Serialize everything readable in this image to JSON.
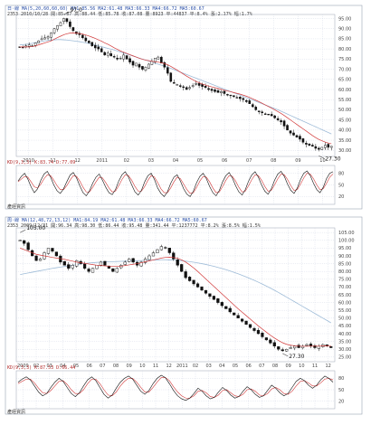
{
  "colors": {
    "candle_up": "#ffffff",
    "candle_down": "#111111",
    "ma_short": "#d23a3a",
    "ma_mid": "#2f8a4a",
    "ma_long": "#9fbcd8",
    "grid": "#cfd6e3",
    "frame": "#9aa3b2",
    "k_line": "#111111",
    "d_line": "#d23a3a"
  },
  "chart_data": [
    {
      "type": "candlestick",
      "header_line1": "日·線 MA(5,20,60,60,60)  MA1:85.56  MA2:61.48  MA3:66.33  MA4:66.72  MA5:60.67",
      "header_line2": "2353  2010/10/28  開:85.87  高:88.44  低:85.78  收:87.08  量:8923  平:44837  平:8.4%  漲:2.17%  幅:1.7%",
      "x_tick_labels": [
        "2010",
        "11",
        "12",
        "2011",
        "02",
        "03",
        "04",
        "05",
        "06",
        "07",
        "08",
        "09",
        "10"
      ],
      "y_tick_labels": [
        "95.00",
        "90.00",
        "85.00",
        "80.00",
        "75.00",
        "70.00",
        "65.00",
        "60.00",
        "55.00",
        "50.00",
        "45.00",
        "40.00",
        "35.00",
        "30.00"
      ],
      "y_range": [
        27,
        97
      ],
      "close": [
        81,
        80.5,
        81.5,
        82,
        81.5,
        83,
        84,
        85,
        85.5,
        86,
        88,
        90,
        91.5,
        93,
        95,
        93.5,
        91,
        89,
        87.5,
        87,
        85.5,
        84,
        83,
        81.5,
        80.5,
        80,
        78.5,
        77,
        78,
        76.5,
        76,
        75,
        75.5,
        77,
        75,
        73.5,
        72,
        73,
        71,
        70,
        71,
        72.5,
        74,
        75.5,
        76,
        73,
        71,
        68,
        64,
        63,
        62.5,
        61.5,
        61,
        60,
        61,
        62,
        63,
        62,
        61.5,
        61,
        60,
        59.5,
        59,
        58.5,
        59,
        58,
        57.5,
        57,
        56.5,
        56,
        55.5,
        55,
        54,
        53,
        51.5,
        50,
        49,
        48.5,
        48,
        47.5,
        47,
        46,
        45,
        44,
        42,
        40,
        38.5,
        37.5,
        36.5,
        35.5,
        34,
        33,
        32.5,
        32,
        31,
        30.5,
        31.5,
        32.5,
        31.5,
        32
      ],
      "ma20": [
        81,
        81,
        81,
        81,
        81.2,
        81.5,
        82,
        82.5,
        83,
        83.5,
        84,
        84.8,
        85.6,
        86.3,
        87,
        87.5,
        87.8,
        87.9,
        87.8,
        87.6,
        87.3,
        86.9,
        86.4,
        85.8,
        85.2,
        84.5,
        83.8,
        83,
        82.3,
        81.5,
        80.6,
        79.8,
        79,
        78.4,
        77.8,
        77.2,
        76.6,
        76,
        75.4,
        74.9,
        74.5,
        74.2,
        73.9,
        73.7,
        73.5,
        73.2,
        72.8,
        72.2,
        71.4,
        70.5,
        69.6,
        68.6,
        67.6,
        66.6,
        65.7,
        64.8,
        64,
        63.3,
        62.7,
        62.2,
        61.7,
        61.3,
        60.9,
        60.5,
        60.1,
        59.7,
        59.3,
        58.9,
        58.5,
        58.1,
        57.7,
        57.2,
        56.7,
        56.1,
        55.4,
        54.7,
        54,
        53.2,
        52.4,
        51.6,
        50.8,
        50,
        49.1,
        48.2,
        47.2,
        46.1,
        45,
        43.9,
        42.8,
        41.7,
        40.6,
        39.5,
        38.4,
        37.3,
        36.3,
        35.4,
        34.7,
        34.1,
        33.6,
        33.2
      ],
      "ma60": [
        82,
        82.1,
        82.3,
        82.5,
        82.8,
        83.1,
        83.4,
        83.7,
        84,
        84.2,
        84.4,
        84.5,
        84.6,
        84.6,
        84.5,
        84.4,
        84.2,
        84,
        83.8,
        83.6,
        83.3,
        83,
        82.7,
        82.3,
        81.9,
        81.5,
        81.1,
        80.7,
        80.3,
        79.9,
        79.5,
        79,
        78.5,
        78,
        77.5,
        77,
        76.5,
        76,
        75.5,
        75,
        74.5,
        74,
        73.5,
        73,
        72.5,
        72,
        71.5,
        71,
        70.4,
        69.8,
        69.2,
        68.6,
        68,
        67.4,
        66.8,
        66.2,
        65.6,
        65,
        64.4,
        63.8,
        63.2,
        62.6,
        62,
        61.4,
        60.8,
        60.2,
        59.6,
        59,
        58.4,
        57.8,
        57.2,
        56.6,
        56,
        55.4,
        54.8,
        54.2,
        53.6,
        53,
        52.4,
        51.8,
        51.2,
        50.6,
        50,
        49.3,
        48.6,
        47.9,
        47.2,
        46.5,
        45.8,
        45.1,
        44.4,
        43.7,
        43,
        42.3,
        41.6,
        40.9,
        40.2,
        39.5,
        38.8,
        38.1
      ],
      "annotations": [
        {
          "text": "97.0",
          "x_index": 14,
          "value": 97
        },
        {
          "text": "27.30",
          "x_index": 95,
          "value": 27.3
        }
      ],
      "oscillator": {
        "label": "KD(9,3,3)  K:83.74  D:77.09",
        "y_tick_labels": [
          "80",
          "50",
          "20"
        ],
        "y_range": [
          0,
          100
        ],
        "k": [
          60,
          72,
          80,
          65,
          45,
          30,
          40,
          62,
          78,
          85,
          70,
          50,
          35,
          28,
          40,
          58,
          75,
          82,
          68,
          48,
          30,
          22,
          35,
          55,
          70,
          78,
          62,
          44,
          30,
          25,
          38,
          60,
          76,
          84,
          70,
          50,
          32,
          24,
          36,
          58,
          74,
          80,
          64,
          42,
          28,
          20,
          32,
          54,
          70,
          76,
          60,
          40,
          26,
          20,
          34,
          56,
          72,
          80,
          66,
          46,
          30,
          22,
          36,
          58,
          74,
          82,
          68,
          48,
          32,
          24,
          38,
          60,
          76,
          84,
          70,
          50,
          34,
          26,
          40,
          62,
          78,
          85,
          72,
          52,
          36,
          28,
          42,
          64,
          80,
          86,
          74,
          54,
          38,
          30,
          44,
          66,
          80,
          84
        ],
        "d": [
          58,
          65,
          72,
          70,
          58,
          45,
          42,
          52,
          66,
          76,
          74,
          62,
          48,
          38,
          38,
          48,
          62,
          74,
          72,
          60,
          44,
          32,
          32,
          44,
          58,
          70,
          68,
          56,
          42,
          32,
          34,
          48,
          64,
          76,
          74,
          62,
          46,
          34,
          34,
          46,
          62,
          74,
          70,
          56,
          40,
          30,
          30,
          42,
          58,
          70,
          66,
          52,
          38,
          28,
          30,
          44,
          60,
          72,
          70,
          58,
          42,
          30,
          32,
          46,
          62,
          74,
          72,
          60,
          44,
          32,
          34,
          48,
          64,
          76,
          74,
          62,
          46,
          34,
          36,
          50,
          66,
          78,
          76,
          64,
          48,
          36,
          38,
          52,
          68,
          80,
          78,
          66,
          50,
          38,
          40,
          54,
          70,
          78
        ]
      },
      "footer": "產經資訊"
    },
    {
      "type": "candlestick",
      "header_line1": "周·線 MA(12,48,72,13,12)  MA1:84.19  MA2:61.48  MA3:66.33  MA4:66.72  MA5:60.67",
      "header_line2": "2353  2009/12/31  開:96.34  高:98.30  低:86.44  收:95.48  量:341.44  平:1237772  平:8.2%  漲:8.5%  幅:1.5%",
      "x_tick_labels": [
        "2009",
        "02",
        "03",
        "04",
        "05",
        "06",
        "07",
        "08",
        "09",
        "10",
        "11",
        "12",
        "2011",
        "02",
        "03",
        "04",
        "05",
        "06",
        "07",
        "08",
        "09",
        "10",
        "11",
        "12"
      ],
      "y_tick_labels": [
        "105.00",
        "100.00",
        "95.00",
        "90.00",
        "85.00",
        "80.00",
        "75.00",
        "70.00",
        "65.00",
        "60.00",
        "55.00",
        "50.00",
        "45.00",
        "40.00",
        "35.00",
        "30.00",
        "25.00"
      ],
      "y_range": [
        22,
        108
      ],
      "close": [
        100,
        98,
        94,
        90,
        87,
        88,
        92,
        95,
        93,
        90,
        86,
        84,
        82,
        84,
        87,
        85,
        82,
        80,
        82,
        84,
        86,
        84,
        82,
        80,
        82,
        84,
        86,
        88,
        86,
        84,
        86,
        88,
        90,
        92,
        94,
        96,
        95,
        92,
        88,
        84,
        80,
        76,
        74,
        72,
        70,
        68,
        66,
        64,
        62,
        60,
        58,
        56,
        54,
        52,
        50,
        48,
        46,
        44,
        42,
        40,
        38,
        36,
        34,
        32,
        30,
        29,
        30,
        31,
        32,
        31,
        32,
        33,
        32,
        31,
        32,
        33,
        32,
        31
      ],
      "ma_mid": [
        78,
        78.5,
        79,
        79.5,
        80,
        80.5,
        81,
        81.5,
        82,
        82.4,
        82.8,
        83.2,
        83.6,
        84,
        84.4,
        84.8,
        85.1,
        85.4,
        85.6,
        85.8,
        86,
        86.1,
        86.2,
        86.3,
        86.4,
        86.5,
        86.6,
        86.7,
        86.8,
        86.9,
        87,
        87.1,
        87.2,
        87.3,
        87.4,
        87.5,
        87.5,
        87.4,
        87.3,
        87.1,
        86.9,
        86.6,
        86.3,
        85.9,
        85.5,
        85,
        84.5,
        83.9,
        83.3,
        82.6,
        81.9,
        81.1,
        80.3,
        79.4,
        78.5,
        77.5,
        76.5,
        75.4,
        74.3,
        73.1,
        71.9,
        70.6,
        69.3,
        67.9,
        66.5,
        65,
        63.5,
        62,
        60.5,
        59,
        57.5,
        56,
        54.5,
        53,
        51.5,
        50,
        48.5,
        47
      ],
      "ma_short": [
        95,
        94,
        93,
        92,
        91,
        90.5,
        90,
        89.5,
        89,
        88.6,
        88.2,
        87.8,
        87.2,
        86.6,
        86,
        85.6,
        85.2,
        84.8,
        84.4,
        84,
        83.8,
        83.6,
        83.4,
        83.2,
        83.2,
        83.4,
        83.8,
        84.2,
        84.6,
        85,
        85.6,
        86.2,
        86.8,
        87.4,
        88,
        88.6,
        89,
        89.2,
        89,
        88.4,
        87.4,
        86,
        84.2,
        82.2,
        80,
        77.6,
        75.2,
        72.8,
        70.4,
        68,
        65.6,
        63.2,
        60.8,
        58.4,
        56,
        53.8,
        51.6,
        49.4,
        47.2,
        45,
        43,
        41,
        39,
        37.2,
        35.6,
        34.2,
        33.2,
        32.6,
        32.2,
        32,
        31.9,
        31.9,
        32,
        32,
        32,
        32.1,
        32.1,
        32
      ],
      "annotations": [
        {
          "text": "105.00",
          "x_index": 0,
          "value": 105
        },
        {
          "text": "27.30",
          "x_index": 65,
          "value": 27.3
        }
      ],
      "oscillator": {
        "label": "KD(9,3,3)  K:87.53  D:66.44",
        "y_tick_labels": [
          "80",
          "50",
          "20"
        ],
        "y_range": [
          0,
          100
        ],
        "k": [
          70,
          78,
          84,
          76,
          60,
          44,
          34,
          40,
          56,
          70,
          80,
          72,
          56,
          40,
          32,
          42,
          60,
          76,
          84,
          74,
          56,
          38,
          28,
          36,
          54,
          70,
          80,
          86,
          78,
          62,
          46,
          38,
          48,
          66,
          80,
          88,
          82,
          66,
          48,
          34,
          26,
          22,
          28,
          40,
          54,
          46,
          34,
          26,
          30,
          44,
          56,
          48,
          36,
          28,
          32,
          46,
          58,
          50,
          38,
          30,
          34,
          48,
          62,
          54,
          42,
          34,
          40,
          56,
          72,
          80,
          74,
          62,
          54,
          62,
          76,
          86,
          80,
          70
        ],
        "d": [
          66,
          72,
          78,
          78,
          68,
          54,
          42,
          40,
          48,
          60,
          72,
          74,
          64,
          50,
          40,
          40,
          50,
          66,
          78,
          78,
          66,
          50,
          36,
          34,
          44,
          60,
          72,
          80,
          80,
          70,
          56,
          44,
          44,
          56,
          70,
          82,
          82,
          74,
          58,
          44,
          34,
          28,
          28,
          34,
          46,
          48,
          42,
          32,
          30,
          36,
          48,
          50,
          42,
          34,
          32,
          38,
          50,
          52,
          46,
          36,
          34,
          40,
          52,
          56,
          50,
          40,
          38,
          46,
          60,
          72,
          74,
          68,
          60,
          60,
          68,
          78,
          80,
          76
        ]
      },
      "footer": "產經資訊"
    }
  ]
}
